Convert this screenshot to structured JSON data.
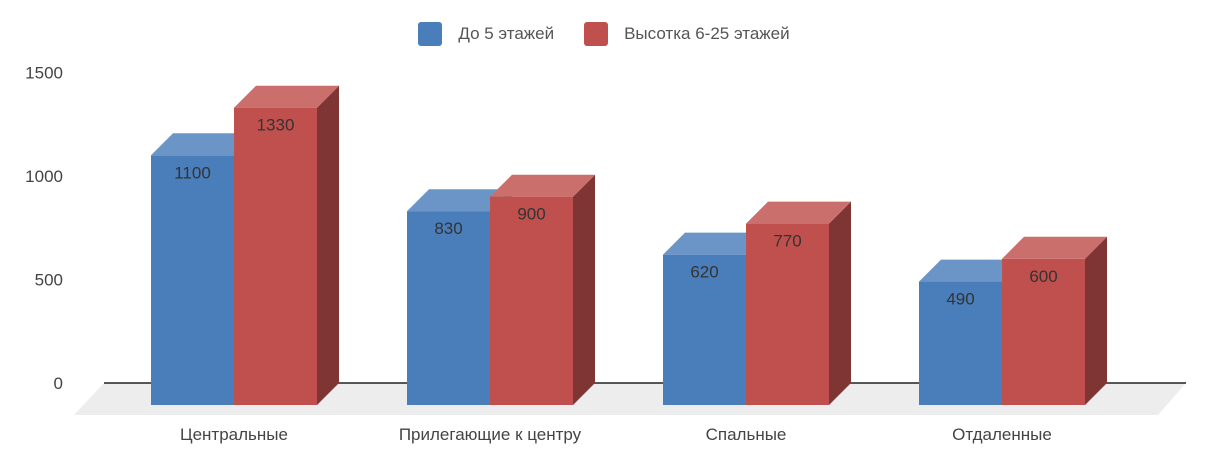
{
  "chart_data": {
    "type": "bar",
    "categories": [
      "Центральные",
      "Прилегающие к центру",
      "Спальные",
      "Отдаленные"
    ],
    "series": [
      {
        "name": "До 5 этажей",
        "values": [
          1100,
          830,
          620,
          490
        ],
        "color": "#4A7EBB"
      },
      {
        "name": "Высотка 6-25 этажей",
        "values": [
          1330,
          900,
          770,
          600
        ],
        "color": "#C0504D"
      }
    ],
    "yticks": [
      0,
      500,
      1000,
      1500
    ],
    "ylim": [
      0,
      1500
    ],
    "legend_position": "top-center",
    "style": "3d-column"
  }
}
